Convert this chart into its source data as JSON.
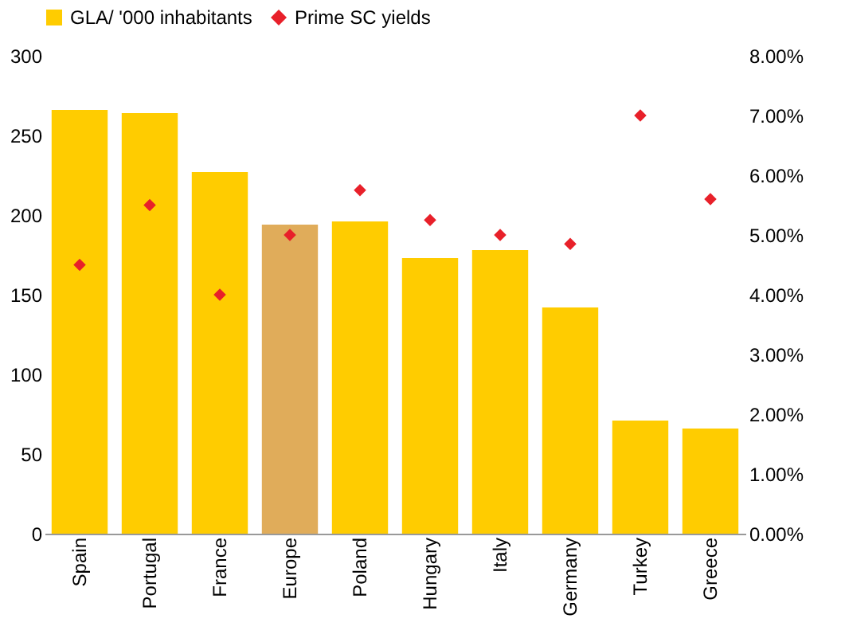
{
  "chart_data": {
    "type": "bar",
    "categories": [
      "Spain",
      "Portugal",
      "France",
      "Europe",
      "Poland",
      "Hungary",
      "Italy",
      "Germany",
      "Turkey",
      "Greece"
    ],
    "series": [
      {
        "name": "GLA/ '000 inhabitants",
        "color": "#ffcc00",
        "colors": [
          "#ffcc00",
          "#ffcc00",
          "#ffcc00",
          "#e0ac5a",
          "#ffcc00",
          "#ffcc00",
          "#ffcc00",
          "#ffcc00",
          "#ffcc00",
          "#ffcc00"
        ],
        "values": [
          266,
          264,
          227,
          194,
          196,
          173,
          178,
          142,
          71,
          66
        ]
      },
      {
        "name": "Prime SC yields",
        "type": "scatter",
        "axis": "y2",
        "marker": "diamond",
        "color": "#e8202a",
        "values": [
          4.5,
          5.5,
          4.0,
          5.0,
          5.75,
          5.25,
          5.0,
          4.85,
          7.0,
          5.6
        ]
      }
    ],
    "ylim": [
      0,
      300
    ],
    "yticks": [
      0,
      50,
      100,
      150,
      200,
      250,
      300
    ],
    "y2lim": [
      0,
      8
    ],
    "y2ticks": [
      {
        "value": 0,
        "label": "0.00%"
      },
      {
        "value": 1,
        "label": "1.00%"
      },
      {
        "value": 2,
        "label": "2.00%"
      },
      {
        "value": 3,
        "label": "3.00%"
      },
      {
        "value": 4,
        "label": "4.00%"
      },
      {
        "value": 5,
        "label": "5.00%"
      },
      {
        "value": 6,
        "label": "6.00%"
      },
      {
        "value": 7,
        "label": "7.00%"
      },
      {
        "value": 8,
        "label": "8.00%"
      }
    ],
    "grid": false,
    "legend": "top"
  }
}
